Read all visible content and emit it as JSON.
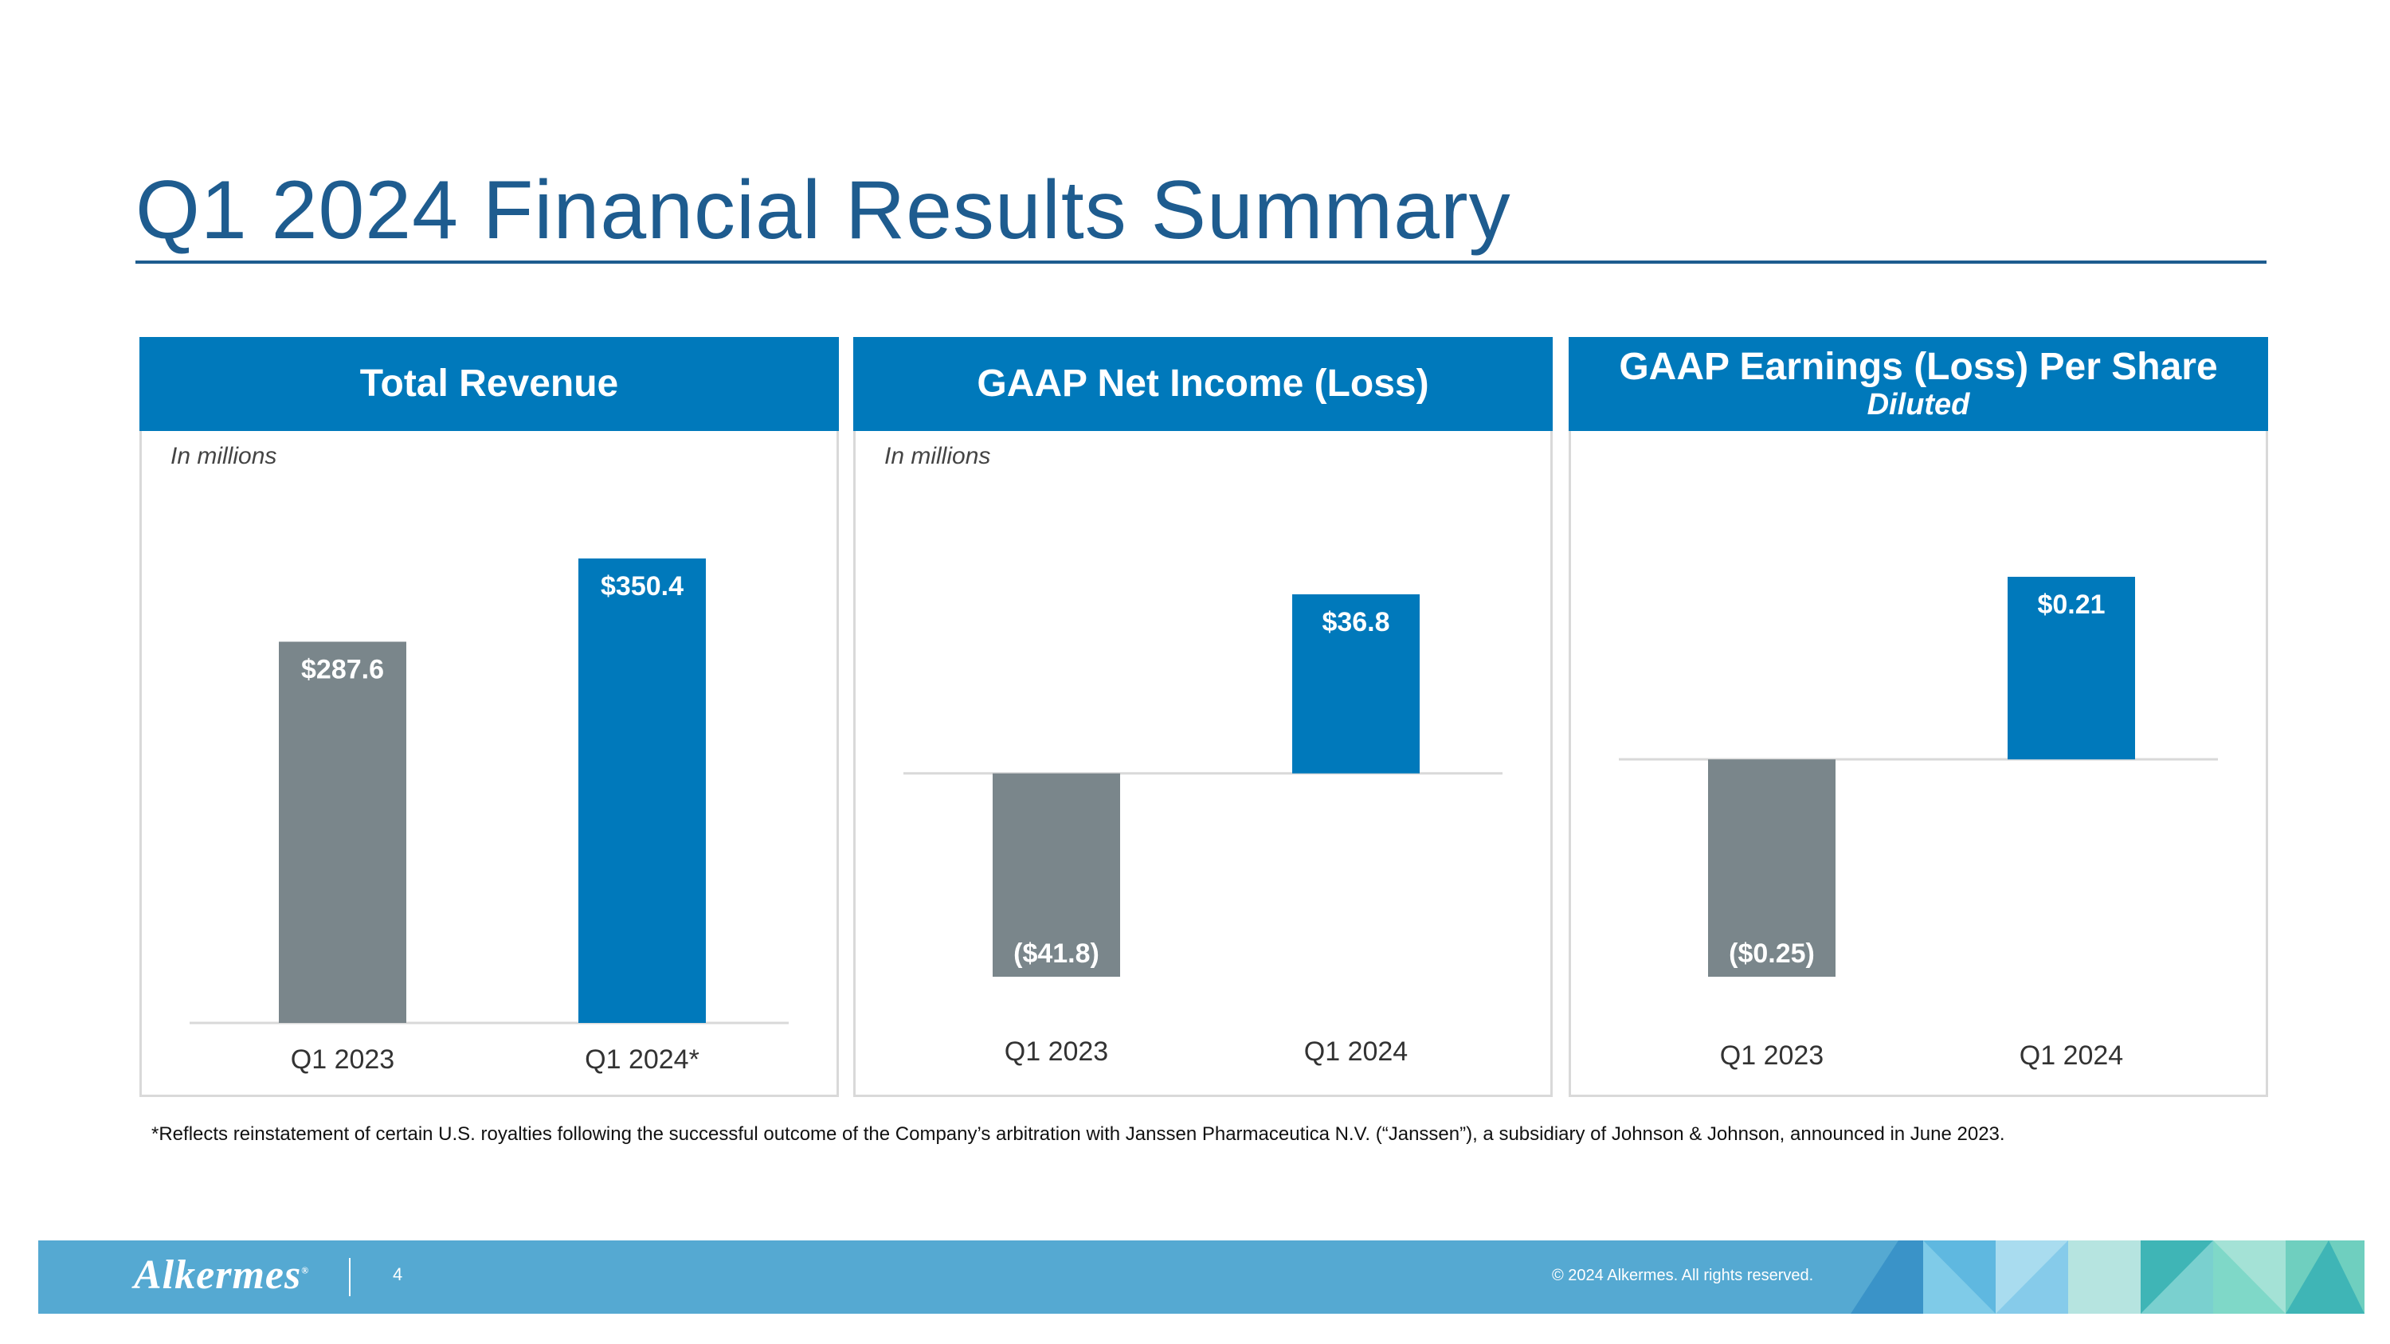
{
  "slide": {
    "title": "Q1 2024 Financial Results Summary",
    "footnote": "*Reflects reinstatement of certain U.S. royalties following the successful outcome of the Company’s arbitration with Janssen Pharmaceutica N.V. (“Janssen”), a subsidiary of Johnson & Johnson, announced in June 2023.",
    "footer": {
      "logo": "Alkermes",
      "page_number": "4",
      "copyright": "© 2024 Alkermes. All rights reserved."
    }
  },
  "panels": [
    {
      "title": "Total Revenue",
      "subtitle": "",
      "unit_note": "In millions"
    },
    {
      "title": "GAAP Net Income (Loss)",
      "subtitle": "",
      "unit_note": "In millions"
    },
    {
      "title": "GAAP Earnings (Loss) Per Share",
      "subtitle": "Diluted",
      "unit_note": ""
    }
  ],
  "colors": {
    "header": "#0079bb",
    "q1_2023_bar": "#7a868b",
    "q1_2024_bar": "#0079bb",
    "title": "#1e5c8f"
  },
  "chart_data": [
    {
      "type": "bar",
      "title": "Total Revenue",
      "unit": "In millions",
      "categories": [
        "Q1 2023",
        "Q1 2024*"
      ],
      "values": [
        287.6,
        350.4
      ],
      "labels": [
        "$287.6",
        "$350.4"
      ],
      "ylim": [
        0,
        350.4
      ]
    },
    {
      "type": "bar",
      "title": "GAAP Net Income (Loss)",
      "unit": "In millions",
      "categories": [
        "Q1 2023",
        "Q1 2024"
      ],
      "values": [
        -41.8,
        36.8
      ],
      "labels": [
        "($41.8)",
        "$36.8"
      ],
      "ylim": [
        -41.8,
        36.8
      ]
    },
    {
      "type": "bar",
      "title": "GAAP Earnings (Loss) Per Share",
      "subtitle": "Diluted",
      "categories": [
        "Q1 2023",
        "Q1 2024"
      ],
      "values": [
        -0.25,
        0.21
      ],
      "labels": [
        "($0.25)",
        "$0.21"
      ],
      "ylim": [
        -0.25,
        0.21
      ]
    }
  ]
}
